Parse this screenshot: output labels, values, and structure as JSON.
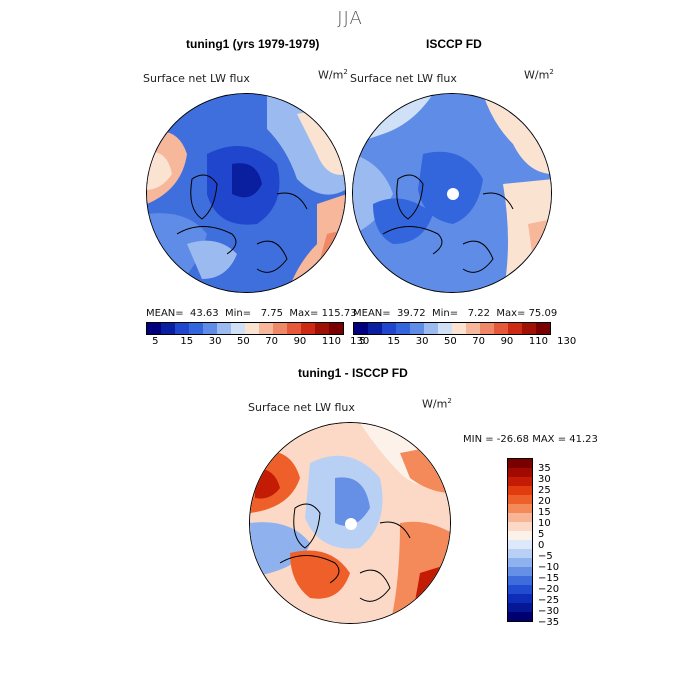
{
  "figure": {
    "season": "JJA",
    "panel_left": {
      "title": "tuning1 (yrs 1979-1979)",
      "variable": "Surface net LW flux",
      "units_base": "W/m",
      "units_exp": "2",
      "stats": {
        "mean_label": "MEAN=",
        "mean": "43.63",
        "min_label": "Min=",
        "min": "7.75",
        "max_label": "Max=",
        "max": "115.73"
      }
    },
    "panel_right": {
      "title": "ISCCP FD",
      "variable": "Surface net LW flux",
      "units_base": "W/m",
      "units_exp": "2",
      "stats": {
        "mean_label": "MEAN=",
        "mean": "39.72",
        "min_label": "Min=",
        "min": "7.22",
        "max_label": "Max=",
        "max": "75.09"
      }
    },
    "panel_diff": {
      "title": "tuning1 - ISCCP FD",
      "variable": "Surface net LW flux",
      "units_base": "W/m",
      "units_exp": "2",
      "minmax": "MIN = -26.68 MAX =  41.23"
    },
    "colorbar_abs": {
      "colors": [
        "#00007f",
        "#0a1fa0",
        "#1f46cc",
        "#3366dd",
        "#5f8ce6",
        "#9bbbf0",
        "#cfe0f7",
        "#fbe3d2",
        "#f6b79a",
        "#ef8866",
        "#e5583a",
        "#cc2a14",
        "#a01105",
        "#7a0000"
      ],
      "ticks": [
        "5",
        "15",
        "30",
        "50",
        "70",
        "90",
        "110",
        "130"
      ]
    },
    "colorbar_diff": {
      "colors": [
        "#7a0000",
        "#a00a00",
        "#c41b05",
        "#e03c10",
        "#ef5f2a",
        "#f48a5a",
        "#f7b596",
        "#fbd9c6",
        "#fdf2ea",
        "#dde9fb",
        "#b9d0f5",
        "#8fb2ee",
        "#6690e5",
        "#3e6cdc",
        "#214bd0",
        "#0d2db8",
        "#061795",
        "#000070"
      ],
      "labels": [
        "35",
        "30",
        "25",
        "20",
        "15",
        "10",
        "5",
        "0",
        "−5",
        "−10",
        "−15",
        "−20",
        "−25",
        "−30",
        "−35"
      ]
    }
  }
}
